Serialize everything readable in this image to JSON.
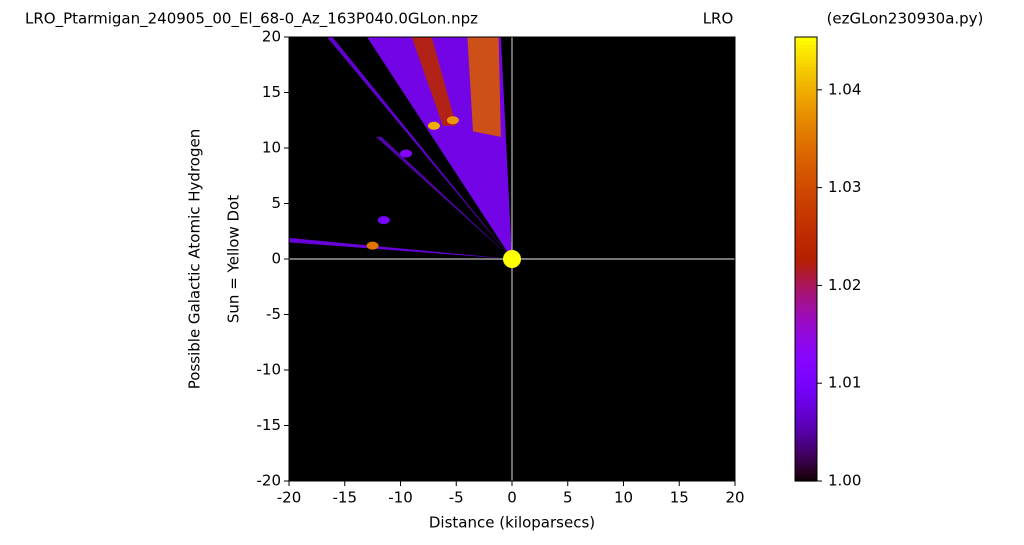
{
  "chart_data": {
    "type": "heatmap",
    "title": "LRO_Ptarmigan_240905_00_El_68-0_Az_163P040.0GLon.npz",
    "title_center": "LRO",
    "title_right": "(ezGLon230930a.py)",
    "x_label": "Distance (kiloparsecs)",
    "y_label": "Possible Galactic Atomic Hydrogen",
    "y_label_2": "Sun = Yellow Dot",
    "xlim": [
      -20,
      20
    ],
    "ylim": [
      -20,
      20
    ],
    "xticks": [
      -20,
      -15,
      -10,
      -5,
      0,
      5,
      10,
      15,
      20
    ],
    "yticks": [
      -20,
      -15,
      -10,
      -5,
      0,
      5,
      10,
      15,
      20
    ],
    "colormap": "gnuplot",
    "clim": [
      1.0,
      1.0454
    ],
    "cticks": [
      {
        "value": 1.0,
        "label": "1.00"
      },
      1.01,
      1.02,
      1.03,
      1.04
    ],
    "zero_lines": true,
    "regions": [
      {
        "x": [
          0,
          -13,
          -1
        ],
        "y": [
          0,
          20,
          20
        ],
        "value": 1.011
      },
      {
        "x": [
          0,
          -16.6,
          -16.1
        ],
        "y": [
          0,
          20,
          20
        ],
        "value": 1.008
      },
      {
        "x": [
          0,
          -12.2,
          -11.7
        ],
        "y": [
          0,
          11,
          11
        ],
        "value": 1.006
      },
      {
        "x": [
          0,
          -20,
          -20
        ],
        "y": [
          0,
          1.9,
          1.5
        ],
        "value": 1.009
      },
      {
        "x": [
          -9,
          -6.2,
          -5,
          -7.2
        ],
        "y": [
          20,
          12,
          12,
          20
        ],
        "value": 1.024
      },
      {
        "x": [
          -1.2,
          -1,
          -3.5,
          -4
        ],
        "y": [
          20,
          11,
          11.5,
          20
        ],
        "value": 1.032
      }
    ],
    "spots": [
      {
        "x": -7,
        "y": 12,
        "value": 1.04
      },
      {
        "x": -5.3,
        "y": 12.5,
        "value": 1.038
      },
      {
        "x": -12.5,
        "y": 1.2,
        "value": 1.035
      },
      {
        "x": -9.5,
        "y": 9.5,
        "value": 1.012
      },
      {
        "x": -11.5,
        "y": 3.5,
        "value": 1.01
      }
    ],
    "sun": {
      "x": 0,
      "y": 0,
      "color": "#ffff00"
    }
  }
}
